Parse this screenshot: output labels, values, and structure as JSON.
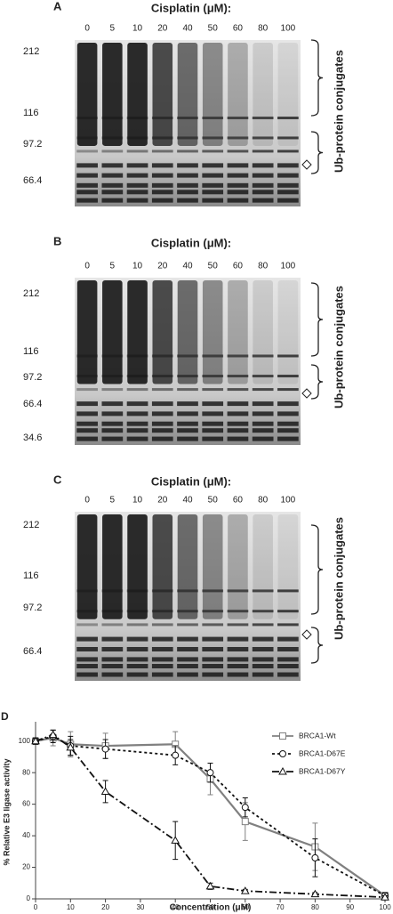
{
  "panels": [
    {
      "label": "A",
      "title": "Cisplatin (μM):",
      "lanes": [
        0,
        5,
        10,
        20,
        40,
        50,
        60,
        80,
        100
      ],
      "markers": [
        212,
        116,
        97.2,
        66.4
      ],
      "annotation": "Ub-protein conjugates"
    },
    {
      "label": "B",
      "title": "Cisplatin (μM):",
      "lanes": [
        0,
        5,
        10,
        20,
        40,
        50,
        60,
        80,
        100
      ],
      "markers": [
        212,
        116,
        97.2,
        66.4,
        34.6
      ],
      "annotation": "Ub-protein conjugates"
    },
    {
      "label": "C",
      "title": "Cisplatin (μM):",
      "lanes": [
        0,
        5,
        10,
        20,
        40,
        50,
        60,
        80,
        100
      ],
      "markers": [
        212,
        116,
        97.2,
        66.4
      ],
      "annotation": "Ub-protein conjugates"
    }
  ],
  "chart_data": {
    "type": "line",
    "label": "D",
    "x_label": "Concentration (μM)",
    "y_label": "% Relative E3 ligase activity",
    "x": [
      0,
      5,
      10,
      20,
      40,
      50,
      60,
      80,
      100
    ],
    "series": [
      {
        "name": "BRCA1-Wt",
        "color": "#808080",
        "marker": "square",
        "dash": "solid",
        "values": [
          100,
          102,
          98,
          97,
          98,
          76,
          49,
          33,
          2
        ],
        "errors": [
          2,
          5,
          8,
          8,
          8,
          10,
          12,
          15,
          2
        ]
      },
      {
        "name": "BRCA1-D67E",
        "color": "#111111",
        "marker": "circle",
        "dash": "dotted",
        "values": [
          100,
          103,
          97,
          95,
          91,
          80,
          58,
          26,
          2
        ],
        "errors": [
          2,
          4,
          6,
          6,
          6,
          6,
          6,
          12,
          2
        ]
      },
      {
        "name": "BRCA1-D67Y",
        "color": "#111111",
        "marker": "triangle",
        "dash": "dashdot",
        "values": [
          100,
          104,
          96,
          68,
          37,
          8,
          5,
          3,
          1
        ],
        "errors": [
          2,
          3,
          5,
          7,
          12,
          2,
          1,
          1,
          1
        ]
      }
    ],
    "xlim": [
      0,
      100
    ],
    "xticks": [
      0,
      10,
      20,
      30,
      40,
      50,
      60,
      70,
      80,
      90,
      100
    ],
    "ylim": [
      0,
      110
    ],
    "yticks": [
      0,
      20,
      40,
      60,
      80,
      100
    ],
    "legend": "upper right"
  }
}
